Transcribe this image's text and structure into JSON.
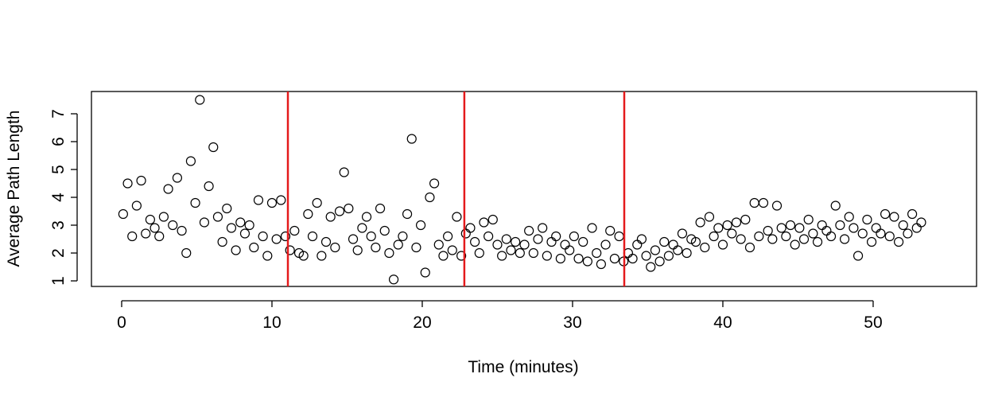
{
  "chart_data": {
    "type": "scatter",
    "x_label": "Time (minutes)",
    "y_label": "Average Path Length",
    "x": [
      0.1,
      0.4,
      0.7,
      1.0,
      1.3,
      1.6,
      1.9,
      2.2,
      2.5,
      2.8,
      3.1,
      3.4,
      3.7,
      4.0,
      4.3,
      4.6,
      4.9,
      5.2,
      5.5,
      5.8,
      6.1,
      6.4,
      6.7,
      7.0,
      7.3,
      7.6,
      7.9,
      8.2,
      8.5,
      8.8,
      9.1,
      9.4,
      9.7,
      10.0,
      10.3,
      10.6,
      10.9,
      11.2,
      11.5,
      11.8,
      12.1,
      12.4,
      12.7,
      13.0,
      13.3,
      13.6,
      13.9,
      14.2,
      14.5,
      14.8,
      15.1,
      15.4,
      15.7,
      16.0,
      16.3,
      16.6,
      16.9,
      17.2,
      17.5,
      17.8,
      18.1,
      18.4,
      18.7,
      19.0,
      19.3,
      19.6,
      19.9,
      20.2,
      20.5,
      20.8,
      21.1,
      21.4,
      21.7,
      22.0,
      22.3,
      22.6,
      22.9,
      23.2,
      23.5,
      23.8,
      24.1,
      24.4,
      24.7,
      25.0,
      25.3,
      25.6,
      25.9,
      26.2,
      26.5,
      26.8,
      27.1,
      27.4,
      27.7,
      28.0,
      28.3,
      28.6,
      28.9,
      29.2,
      29.5,
      29.8,
      30.1,
      30.4,
      30.7,
      31.0,
      31.3,
      31.6,
      31.9,
      32.2,
      32.5,
      32.8,
      33.1,
      33.4,
      33.7,
      34.0,
      34.3,
      34.6,
      34.9,
      35.2,
      35.5,
      35.8,
      36.1,
      36.4,
      36.7,
      37.0,
      37.3,
      37.6,
      37.9,
      38.2,
      38.5,
      38.8,
      39.1,
      39.4,
      39.7,
      40.0,
      40.3,
      40.6,
      40.9,
      41.2,
      41.5,
      41.8,
      42.1,
      42.4,
      42.7,
      43.0,
      43.3,
      43.6,
      43.9,
      44.2,
      44.5,
      44.8,
      45.1,
      45.4,
      45.7,
      46.0,
      46.3,
      46.6,
      46.9,
      47.2,
      47.5,
      47.8,
      48.1,
      48.4,
      48.7,
      49.0,
      49.3,
      49.6,
      49.9,
      50.2,
      50.5,
      50.8,
      51.1,
      51.4,
      51.7,
      52.0,
      52.3,
      52.6,
      52.9,
      53.2
    ],
    "series": [
      {
        "color": "#000000",
        "values": [
          3.4,
          4.5,
          2.6,
          3.7,
          4.6,
          2.7,
          3.2,
          2.9,
          2.6,
          3.3,
          4.3,
          3.0,
          4.7,
          2.8,
          2.0,
          5.3,
          3.8,
          7.5,
          3.1,
          4.4,
          5.8,
          3.3,
          2.4,
          3.6,
          2.9,
          2.1,
          3.1,
          2.7,
          3.0,
          2.2,
          3.9,
          2.6,
          1.9,
          3.8,
          2.5,
          3.9,
          2.6,
          2.1,
          2.8,
          2.0,
          1.9,
          3.4,
          2.6,
          3.8,
          1.9,
          2.4,
          3.3,
          2.2,
          3.5,
          4.9,
          3.6,
          2.5,
          2.1,
          2.9,
          3.3,
          2.6,
          2.2,
          3.6,
          2.8,
          2.0,
          1.05,
          2.3,
          2.6,
          3.4,
          6.1,
          2.2,
          3.0,
          1.3,
          4.0,
          4.5,
          2.3,
          1.9,
          2.6,
          2.1,
          3.3,
          1.9,
          2.7,
          2.9,
          2.4,
          2.0,
          3.1,
          2.6,
          3.2,
          2.3,
          1.9,
          2.5,
          2.1,
          2.4,
          2.0,
          2.3,
          2.8,
          2.0,
          2.5,
          2.9,
          1.9,
          2.4,
          2.6,
          1.8,
          2.3,
          2.1,
          2.6,
          1.8,
          2.4,
          1.7,
          2.9,
          2.0,
          1.6,
          2.3,
          2.8,
          1.8,
          2.6,
          1.7,
          2.0,
          1.8,
          2.3,
          2.5,
          1.9,
          1.5,
          2.1,
          1.7,
          2.4,
          1.9,
          2.3,
          2.1,
          2.7,
          2.0,
          2.5,
          2.4,
          3.1,
          2.2,
          3.3,
          2.6,
          2.9,
          2.3,
          3.0,
          2.7,
          3.1,
          2.5,
          3.2,
          2.2,
          3.8,
          2.6,
          3.8,
          2.8,
          2.5,
          3.7,
          2.9,
          2.6,
          3.0,
          2.3,
          2.9,
          2.5,
          3.2,
          2.7,
          2.4,
          3.0,
          2.8,
          2.6,
          3.7,
          3.0,
          2.5,
          3.3,
          2.9,
          1.9,
          2.7,
          3.2,
          2.4,
          2.9,
          2.7,
          3.4,
          2.6,
          3.3,
          2.4,
          3.0,
          2.7,
          3.4,
          2.9,
          3.1
        ]
      }
    ],
    "vlines": [
      11.06,
      22.8,
      33.44
    ],
    "vline_color": "#e41a1c",
    "xlim": [
      -2.01,
      56.88
    ],
    "ylim": [
      0.8,
      7.8
    ],
    "xticks": [
      0,
      10,
      20,
      30,
      40,
      50
    ],
    "yticks": [
      1,
      2,
      3,
      4,
      5,
      6,
      7
    ]
  }
}
